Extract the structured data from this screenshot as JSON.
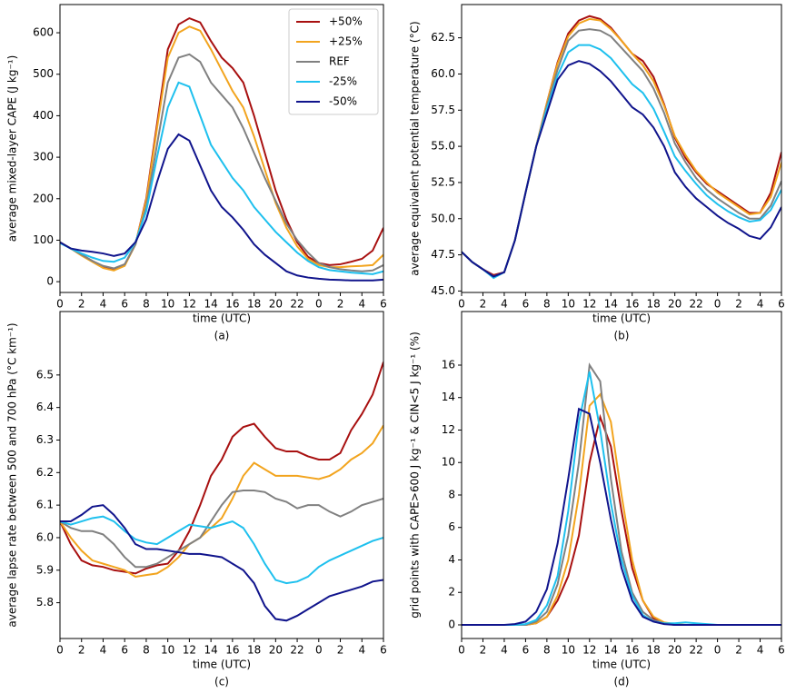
{
  "chart_data": [
    {
      "type": "line",
      "ylabel": "average mixed-layer CAPE (J kg⁻¹)",
      "xlabel": "time (UTC)",
      "caption": "(a)",
      "legend": "upper right",
      "x": [
        0,
        1,
        2,
        3,
        4,
        5,
        6,
        7,
        8,
        9,
        10,
        11,
        12,
        13,
        14,
        15,
        16,
        17,
        18,
        19,
        20,
        21,
        22,
        23,
        24,
        25,
        26,
        27,
        28,
        29,
        30
      ],
      "xlim": [
        0,
        30
      ],
      "xticks": [
        0,
        2,
        4,
        6,
        8,
        10,
        12,
        14,
        16,
        18,
        20,
        22,
        {
          "value": 24,
          "label": "0"
        },
        {
          "value": 26,
          "label": "2"
        },
        {
          "value": 28,
          "label": "4"
        },
        {
          "value": 30,
          "label": "6"
        }
      ],
      "ylim": [
        -26,
        668
      ],
      "yticks": [
        0,
        100,
        200,
        300,
        400,
        500,
        600
      ],
      "series": [
        {
          "name": "+50%",
          "color": "#a81010",
          "values": [
            95,
            80,
            65,
            50,
            35,
            28,
            40,
            90,
            200,
            380,
            560,
            620,
            635,
            625,
            580,
            540,
            515,
            480,
            400,
            310,
            220,
            150,
            95,
            60,
            45,
            40,
            42,
            48,
            55,
            75,
            130
          ]
        },
        {
          "name": "+25%",
          "color": "#f2a41e",
          "values": [
            95,
            80,
            63,
            48,
            33,
            27,
            38,
            90,
            195,
            370,
            540,
            600,
            615,
            605,
            560,
            510,
            460,
            420,
            350,
            270,
            190,
            130,
            85,
            55,
            40,
            35,
            35,
            37,
            38,
            40,
            65
          ]
        },
        {
          "name": "REF",
          "color": "#808080",
          "values": [
            95,
            80,
            65,
            50,
            38,
            32,
            42,
            90,
            180,
            330,
            480,
            540,
            548,
            530,
            480,
            450,
            420,
            370,
            310,
            250,
            195,
            140,
            100,
            70,
            45,
            35,
            30,
            27,
            25,
            27,
            40
          ]
        },
        {
          "name": "-25%",
          "color": "#1ec0ee",
          "values": [
            93,
            80,
            68,
            58,
            50,
            48,
            58,
            95,
            170,
            300,
            420,
            480,
            470,
            400,
            330,
            290,
            250,
            220,
            180,
            150,
            120,
            95,
            70,
            50,
            35,
            28,
            25,
            22,
            20,
            18,
            25
          ]
        },
        {
          "name": "-50%",
          "color": "#10148c",
          "values": [
            95,
            80,
            75,
            72,
            68,
            62,
            68,
            95,
            150,
            240,
            320,
            355,
            340,
            280,
            220,
            180,
            155,
            125,
            90,
            65,
            45,
            25,
            15,
            10,
            7,
            5,
            4,
            3,
            3,
            3,
            5
          ]
        }
      ]
    },
    {
      "type": "line",
      "ylabel": "average equivalent potential temperature (°C)",
      "xlabel": "time (UTC)",
      "caption": "(b)",
      "x": [
        0,
        1,
        2,
        3,
        4,
        5,
        6,
        7,
        8,
        9,
        10,
        11,
        12,
        13,
        14,
        15,
        16,
        17,
        18,
        19,
        20,
        21,
        22,
        23,
        24,
        25,
        26,
        27,
        28,
        29,
        30
      ],
      "xlim": [
        0,
        30
      ],
      "xticks": [
        0,
        2,
        4,
        6,
        8,
        10,
        12,
        14,
        16,
        18,
        20,
        22,
        {
          "value": 24,
          "label": "0"
        },
        {
          "value": 26,
          "label": "2"
        },
        {
          "value": 28,
          "label": "4"
        },
        {
          "value": 30,
          "label": "6"
        }
      ],
      "ylim": [
        44.9,
        64.8
      ],
      "yticks": [
        {
          "value": 45,
          "label": "45.0"
        },
        47.5,
        {
          "value": 50,
          "label": "50.0"
        },
        52.5,
        {
          "value": 55,
          "label": "55.0"
        },
        57.5,
        {
          "value": 60,
          "label": "60.0"
        },
        62.5
      ],
      "series": [
        {
          "color": "#a81010",
          "values": [
            47.7,
            47.0,
            46.5,
            46.1,
            46.3,
            48.5,
            51.8,
            55.0,
            58.0,
            60.8,
            62.8,
            63.7,
            64.0,
            63.8,
            63.2,
            62.3,
            61.4,
            60.9,
            59.8,
            57.9,
            55.6,
            54.2,
            53.2,
            52.4,
            51.9,
            51.4,
            50.9,
            50.4,
            50.4,
            51.8,
            54.6
          ]
        },
        {
          "color": "#f2a41e",
          "values": [
            47.7,
            47.0,
            46.5,
            46.0,
            46.3,
            48.5,
            51.8,
            55.0,
            58.0,
            60.7,
            62.6,
            63.5,
            63.8,
            63.7,
            63.1,
            62.3,
            61.4,
            60.6,
            59.5,
            57.8,
            55.7,
            54.4,
            53.3,
            52.5,
            51.8,
            51.3,
            50.8,
            50.3,
            50.4,
            51.5,
            53.9
          ]
        },
        {
          "color": "#808080",
          "values": [
            47.7,
            47.0,
            46.5,
            46.0,
            46.3,
            48.5,
            51.8,
            55.0,
            57.8,
            60.3,
            62.3,
            63.0,
            63.1,
            63.0,
            62.6,
            61.8,
            61.0,
            60.2,
            59.0,
            57.3,
            55.2,
            53.9,
            52.8,
            52.0,
            51.4,
            50.9,
            50.4,
            50.0,
            50.0,
            50.9,
            52.6
          ]
        },
        {
          "color": "#1ec0ee",
          "values": [
            47.7,
            47.0,
            46.5,
            45.9,
            46.3,
            48.5,
            51.8,
            55.0,
            57.6,
            59.9,
            61.5,
            62.0,
            62.0,
            61.7,
            61.1,
            60.2,
            59.3,
            58.7,
            57.6,
            56.0,
            54.3,
            53.3,
            52.4,
            51.6,
            51.0,
            50.5,
            50.1,
            49.8,
            49.9,
            50.6,
            52.0
          ]
        },
        {
          "color": "#10148c",
          "values": [
            47.7,
            47.0,
            46.5,
            46.0,
            46.3,
            48.5,
            51.8,
            55.0,
            57.3,
            59.6,
            60.6,
            60.9,
            60.7,
            60.2,
            59.5,
            58.6,
            57.7,
            57.2,
            56.3,
            55.0,
            53.2,
            52.2,
            51.4,
            50.8,
            50.2,
            49.7,
            49.3,
            48.8,
            48.6,
            49.4,
            50.8
          ]
        }
      ]
    },
    {
      "type": "line",
      "ylabel": "average lapse rate between 500 and 700 hPa (°C km⁻¹)",
      "xlabel": "time (UTC)",
      "caption": "(c)",
      "x": [
        0,
        1,
        2,
        3,
        4,
        5,
        6,
        7,
        8,
        9,
        10,
        11,
        12,
        13,
        14,
        15,
        16,
        17,
        18,
        19,
        20,
        21,
        22,
        23,
        24,
        25,
        26,
        27,
        28,
        29,
        30
      ],
      "xlim": [
        0,
        30
      ],
      "xticks": [
        0,
        2,
        4,
        6,
        8,
        10,
        12,
        14,
        16,
        18,
        20,
        22,
        {
          "value": 24,
          "label": "0"
        },
        {
          "value": 26,
          "label": "2"
        },
        {
          "value": 28,
          "label": "4"
        },
        {
          "value": 30,
          "label": "6"
        }
      ],
      "ylim": [
        5.69,
        6.695
      ],
      "yticks": [
        5.8,
        5.9,
        {
          "value": 6,
          "label": "6.0"
        },
        6.1,
        6.2,
        6.3,
        6.4,
        6.5
      ],
      "series": [
        {
          "color": "#a81010",
          "values": [
            6.05,
            5.98,
            5.93,
            5.915,
            5.91,
            5.9,
            5.895,
            5.89,
            5.905,
            5.915,
            5.92,
            5.96,
            6.02,
            6.1,
            6.19,
            6.24,
            6.31,
            6.34,
            6.35,
            6.31,
            6.275,
            6.265,
            6.265,
            6.25,
            6.24,
            6.24,
            6.26,
            6.33,
            6.38,
            6.44,
            6.54
          ]
        },
        {
          "color": "#f2a41e",
          "values": [
            6.05,
            6.0,
            5.96,
            5.93,
            5.92,
            5.91,
            5.9,
            5.88,
            5.885,
            5.89,
            5.91,
            5.94,
            5.98,
            6.0,
            6.03,
            6.06,
            6.12,
            6.19,
            6.23,
            6.21,
            6.19,
            6.19,
            6.19,
            6.185,
            6.18,
            6.19,
            6.21,
            6.24,
            6.26,
            6.29,
            6.345
          ]
        },
        {
          "color": "#808080",
          "values": [
            6.05,
            6.03,
            6.02,
            6.02,
            6.01,
            5.98,
            5.94,
            5.91,
            5.91,
            5.92,
            5.94,
            5.96,
            5.98,
            6.0,
            6.05,
            6.1,
            6.14,
            6.145,
            6.145,
            6.14,
            6.12,
            6.11,
            6.09,
            6.1,
            6.1,
            6.08,
            6.065,
            6.08,
            6.1,
            6.11,
            6.12
          ]
        },
        {
          "color": "#1ec0ee",
          "values": [
            6.05,
            6.04,
            6.05,
            6.06,
            6.065,
            6.05,
            6.02,
            5.995,
            5.985,
            5.98,
            6.0,
            6.02,
            6.04,
            6.035,
            6.03,
            6.04,
            6.05,
            6.03,
            5.98,
            5.92,
            5.87,
            5.86,
            5.865,
            5.88,
            5.91,
            5.93,
            5.945,
            5.96,
            5.975,
            5.99,
            6.0
          ]
        },
        {
          "color": "#10148c",
          "values": [
            6.05,
            6.05,
            6.07,
            6.095,
            6.1,
            6.07,
            6.03,
            5.98,
            5.965,
            5.965,
            5.96,
            5.955,
            5.95,
            5.95,
            5.945,
            5.94,
            5.92,
            5.9,
            5.86,
            5.79,
            5.75,
            5.745,
            5.76,
            5.78,
            5.8,
            5.82,
            5.83,
            5.84,
            5.85,
            5.865,
            5.87
          ]
        }
      ]
    },
    {
      "type": "line",
      "ylabel": "grid points with CAPE>600 J kg⁻¹ & CIN<5 J kg⁻¹ (%)",
      "xlabel": "time (UTC)",
      "caption": "(d)",
      "x": [
        0,
        1,
        2,
        3,
        4,
        5,
        6,
        7,
        8,
        9,
        10,
        11,
        12,
        13,
        14,
        15,
        16,
        17,
        18,
        19,
        20,
        21,
        22,
        23,
        24,
        25,
        26,
        27,
        28,
        29,
        30
      ],
      "xlim": [
        0,
        30
      ],
      "xticks": [
        0,
        2,
        4,
        6,
        8,
        10,
        12,
        14,
        16,
        18,
        20,
        22,
        {
          "value": 24,
          "label": "0"
        },
        {
          "value": 26,
          "label": "2"
        },
        {
          "value": 28,
          "label": "4"
        },
        {
          "value": 30,
          "label": "6"
        }
      ],
      "ylim": [
        -0.84,
        19.3
      ],
      "yticks": [
        0,
        2,
        4,
        6,
        8,
        10,
        12,
        14,
        16
      ],
      "series": [
        {
          "color": "#a81010",
          "values": [
            0,
            0,
            0,
            0,
            0,
            0,
            0,
            0.1,
            0.5,
            1.5,
            3.0,
            5.5,
            10,
            12.8,
            11,
            7,
            3.5,
            1.5,
            0.4,
            0.1,
            0,
            0,
            0,
            0,
            0,
            0,
            0,
            0,
            0,
            0,
            0
          ]
        },
        {
          "color": "#f2a41e",
          "values": [
            0,
            0,
            0,
            0,
            0,
            0,
            0,
            0.1,
            0.5,
            1.8,
            4.0,
            8.0,
            13.5,
            14.2,
            12.5,
            8,
            4,
            1.5,
            0.5,
            0.15,
            0.05,
            0,
            0,
            0,
            0,
            0,
            0,
            0,
            0,
            0,
            0
          ]
        },
        {
          "color": "#808080",
          "values": [
            0,
            0,
            0,
            0,
            0,
            0,
            0,
            0.2,
            0.8,
            2.5,
            5.5,
            10,
            16.0,
            15,
            9,
            4.5,
            2,
            0.8,
            0.3,
            0.1,
            0,
            0,
            0,
            0,
            0,
            0,
            0,
            0,
            0,
            0,
            0
          ]
        },
        {
          "color": "#1ec0ee",
          "values": [
            0,
            0,
            0,
            0,
            0,
            0,
            0.05,
            0.3,
            1.2,
            3,
            7,
            12.5,
            15.6,
            12,
            7.5,
            4,
            1.8,
            0.6,
            0.2,
            0.1,
            0.1,
            0.15,
            0.1,
            0.05,
            0,
            0,
            0,
            0,
            0,
            0,
            0
          ]
        },
        {
          "color": "#10148c",
          "values": [
            0,
            0,
            0,
            0,
            0,
            0.05,
            0.2,
            0.8,
            2.2,
            5,
            9,
            13.3,
            13,
            10,
            6.5,
            3.5,
            1.5,
            0.5,
            0.2,
            0.05,
            0,
            0,
            0,
            0,
            0,
            0,
            0,
            0,
            0,
            0,
            0
          ]
        }
      ]
    }
  ]
}
